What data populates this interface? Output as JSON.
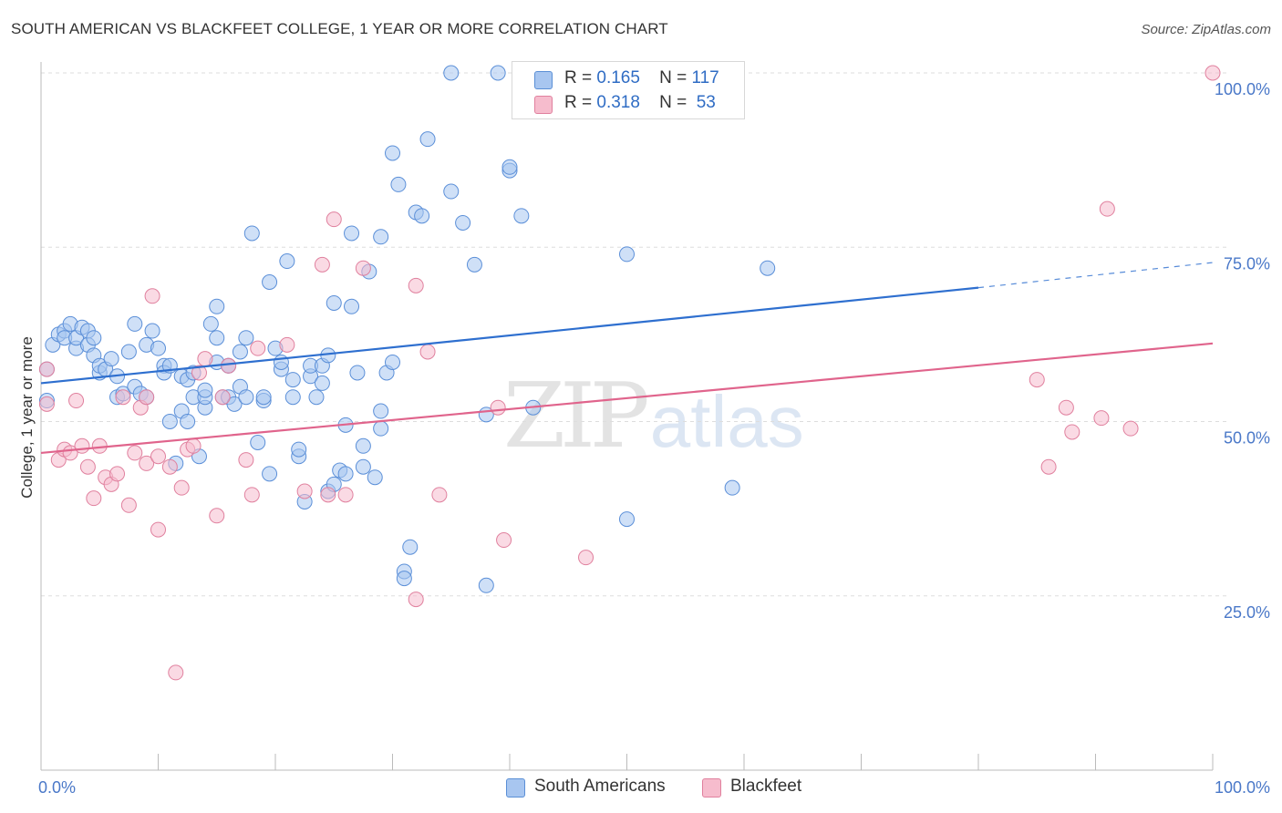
{
  "title": "SOUTH AMERICAN VS BLACKFEET COLLEGE, 1 YEAR OR MORE CORRELATION CHART",
  "source": "Source: ZipAtlas.com",
  "watermark": {
    "zip": "ZIP",
    "atlas": "atlas"
  },
  "legend_top": [
    {
      "r_label": "R =",
      "r_value": "0.165",
      "n_label": "N =",
      "n_value": "117",
      "color": "#a8c6f0",
      "border": "#5a8fd6"
    },
    {
      "r_label": "R =",
      "r_value": "0.318",
      "n_label": "N =",
      "n_value": "53",
      "color": "#f6bccd",
      "border": "#e0809e"
    }
  ],
  "legend_bottom": [
    {
      "label": "South Americans",
      "color": "#a8c6f0",
      "border": "#5a8fd6"
    },
    {
      "label": "Blackfeet",
      "color": "#f6bccd",
      "border": "#e0809e"
    }
  ],
  "chart_data": {
    "type": "scatter",
    "title": "SOUTH AMERICAN VS BLACKFEET COLLEGE, 1 YEAR OR MORE CORRELATION CHART",
    "xlabel": "",
    "ylabel": "College, 1 year or more",
    "xlim": [
      0,
      100
    ],
    "ylim": [
      0,
      100
    ],
    "x_tick_labels": [
      "0.0%",
      "100.0%"
    ],
    "y_tick_labels": [
      "25.0%",
      "50.0%",
      "75.0%",
      "100.0%"
    ],
    "y_ticks": [
      25,
      50,
      75,
      100
    ],
    "grid": true,
    "series": [
      {
        "name": "South Americans",
        "color": "#5b8fd8",
        "fill": "#a8c6f0",
        "trend": {
          "x0": 0,
          "y0": 55.5,
          "x1": 80,
          "y1": 69.2,
          "dash_x1": 100,
          "dash_y1": 72.8,
          "color": "#2e6fcf"
        },
        "points": [
          [
            0.5,
            57.5
          ],
          [
            0.5,
            53
          ],
          [
            1,
            61
          ],
          [
            1.5,
            62.5
          ],
          [
            2,
            63
          ],
          [
            2,
            62
          ],
          [
            2.5,
            64
          ],
          [
            3,
            60.5
          ],
          [
            3,
            62
          ],
          [
            3.5,
            63.5
          ],
          [
            4,
            61
          ],
          [
            4,
            63
          ],
          [
            4.5,
            59.5
          ],
          [
            4.5,
            62
          ],
          [
            5,
            57
          ],
          [
            5,
            58
          ],
          [
            5.5,
            57.5
          ],
          [
            6,
            59
          ],
          [
            6.5,
            56.5
          ],
          [
            6.5,
            53.5
          ],
          [
            7,
            54
          ],
          [
            7.5,
            60
          ],
          [
            8,
            55
          ],
          [
            8,
            64
          ],
          [
            8.5,
            54
          ],
          [
            9,
            61
          ],
          [
            9,
            53.5
          ],
          [
            9.5,
            63
          ],
          [
            10,
            60.5
          ],
          [
            10.5,
            58
          ],
          [
            10.5,
            57
          ],
          [
            11,
            50
          ],
          [
            11,
            58
          ],
          [
            11.5,
            44
          ],
          [
            12,
            56.5
          ],
          [
            12,
            51.5
          ],
          [
            12.5,
            56
          ],
          [
            12.5,
            50
          ],
          [
            13,
            57
          ],
          [
            13,
            53.5
          ],
          [
            13.5,
            45
          ],
          [
            14,
            52
          ],
          [
            14,
            53.5
          ],
          [
            14,
            54.5
          ],
          [
            14.5,
            64
          ],
          [
            15,
            66.5
          ],
          [
            15,
            62
          ],
          [
            15,
            58.5
          ],
          [
            15.5,
            53.5
          ],
          [
            16,
            53.5
          ],
          [
            16,
            58
          ],
          [
            16,
            58
          ],
          [
            16.5,
            52.5
          ],
          [
            17,
            60
          ],
          [
            17,
            55
          ],
          [
            17.5,
            62
          ],
          [
            17.5,
            53.5
          ],
          [
            18,
            77
          ],
          [
            18.5,
            47
          ],
          [
            19,
            53
          ],
          [
            19,
            53.5
          ],
          [
            19.5,
            42.5
          ],
          [
            19.5,
            70
          ],
          [
            20,
            60.5
          ],
          [
            20.5,
            57.5
          ],
          [
            20.5,
            58.5
          ],
          [
            21,
            73
          ],
          [
            21.5,
            56
          ],
          [
            21.5,
            53.5
          ],
          [
            22,
            45
          ],
          [
            22,
            46
          ],
          [
            22.5,
            38.5
          ],
          [
            23,
            56.5
          ],
          [
            23,
            58
          ],
          [
            23.5,
            53.5
          ],
          [
            24,
            55.5
          ],
          [
            24,
            58
          ],
          [
            24.5,
            40
          ],
          [
            24.5,
            59.5
          ],
          [
            25,
            41
          ],
          [
            25,
            67
          ],
          [
            25.5,
            43
          ],
          [
            26,
            49.5
          ],
          [
            26,
            42.5
          ],
          [
            26.5,
            66.5
          ],
          [
            26.5,
            77
          ],
          [
            27,
            57
          ],
          [
            27.5,
            46.5
          ],
          [
            27.5,
            43.5
          ],
          [
            28,
            71.5
          ],
          [
            28.5,
            42
          ],
          [
            29,
            49
          ],
          [
            29,
            51.5
          ],
          [
            29,
            76.5
          ],
          [
            29.5,
            57
          ],
          [
            30,
            58.5
          ],
          [
            30,
            88.5
          ],
          [
            30.5,
            84
          ],
          [
            31,
            28.5
          ],
          [
            31,
            27.5
          ],
          [
            31.5,
            32
          ],
          [
            32,
            80
          ],
          [
            32.5,
            79.5
          ],
          [
            33,
            90.5
          ],
          [
            35,
            100
          ],
          [
            35,
            83
          ],
          [
            36,
            78.5
          ],
          [
            37,
            72.5
          ],
          [
            39,
            100
          ],
          [
            38,
            51
          ],
          [
            38,
            26.5
          ],
          [
            40,
            86
          ],
          [
            40,
            86.5
          ],
          [
            41,
            79.5
          ],
          [
            42,
            52
          ],
          [
            50,
            36
          ],
          [
            50,
            74
          ],
          [
            59,
            40.5
          ],
          [
            62,
            72
          ]
        ],
        "marker_radius": 8
      },
      {
        "name": "Blackfeet",
        "color": "#e0809e",
        "fill": "#f6bccd",
        "trend": {
          "x0": 0,
          "y0": 45.5,
          "x1": 100,
          "y1": 61.2,
          "color": "#e0648c"
        },
        "points": [
          [
            0.5,
            52.5
          ],
          [
            1.5,
            44.5
          ],
          [
            2,
            46
          ],
          [
            2.5,
            45.5
          ],
          [
            3,
            53
          ],
          [
            3.5,
            46.5
          ],
          [
            4,
            43.5
          ],
          [
            4.5,
            39
          ],
          [
            5,
            46.5
          ],
          [
            5.5,
            42
          ],
          [
            6,
            41
          ],
          [
            6.5,
            42.5
          ],
          [
            7,
            53.5
          ],
          [
            7.5,
            38
          ],
          [
            8,
            45.5
          ],
          [
            8.5,
            52
          ],
          [
            9,
            53.5
          ],
          [
            9,
            44
          ],
          [
            9.5,
            68
          ],
          [
            10,
            45
          ],
          [
            10,
            34.5
          ],
          [
            11,
            43.5
          ],
          [
            11.5,
            14
          ],
          [
            12,
            40.5
          ],
          [
            12.5,
            46
          ],
          [
            13,
            46.5
          ],
          [
            13.5,
            57
          ],
          [
            14,
            59
          ],
          [
            15,
            36.5
          ],
          [
            15.5,
            53.5
          ],
          [
            16,
            58
          ],
          [
            17.5,
            44.5
          ],
          [
            18,
            39.5
          ],
          [
            18.5,
            60.5
          ],
          [
            21,
            61
          ],
          [
            22.5,
            40
          ],
          [
            24,
            72.5
          ],
          [
            24.5,
            39.5
          ],
          [
            25,
            79
          ],
          [
            26,
            39.5
          ],
          [
            27.5,
            72
          ],
          [
            32,
            69.5
          ],
          [
            32,
            24.5
          ],
          [
            33,
            60
          ],
          [
            34,
            39.5
          ],
          [
            39,
            52
          ],
          [
            39.5,
            33
          ],
          [
            46.5,
            30.5
          ],
          [
            85,
            56
          ],
          [
            87.5,
            52
          ],
          [
            86,
            43.5
          ],
          [
            88,
            48.5
          ],
          [
            90.5,
            50.5
          ],
          [
            91,
            80.5
          ],
          [
            93,
            49
          ],
          [
            100,
            100
          ],
          [
            0.5,
            57.5
          ]
        ],
        "marker_radius": 8
      }
    ]
  }
}
